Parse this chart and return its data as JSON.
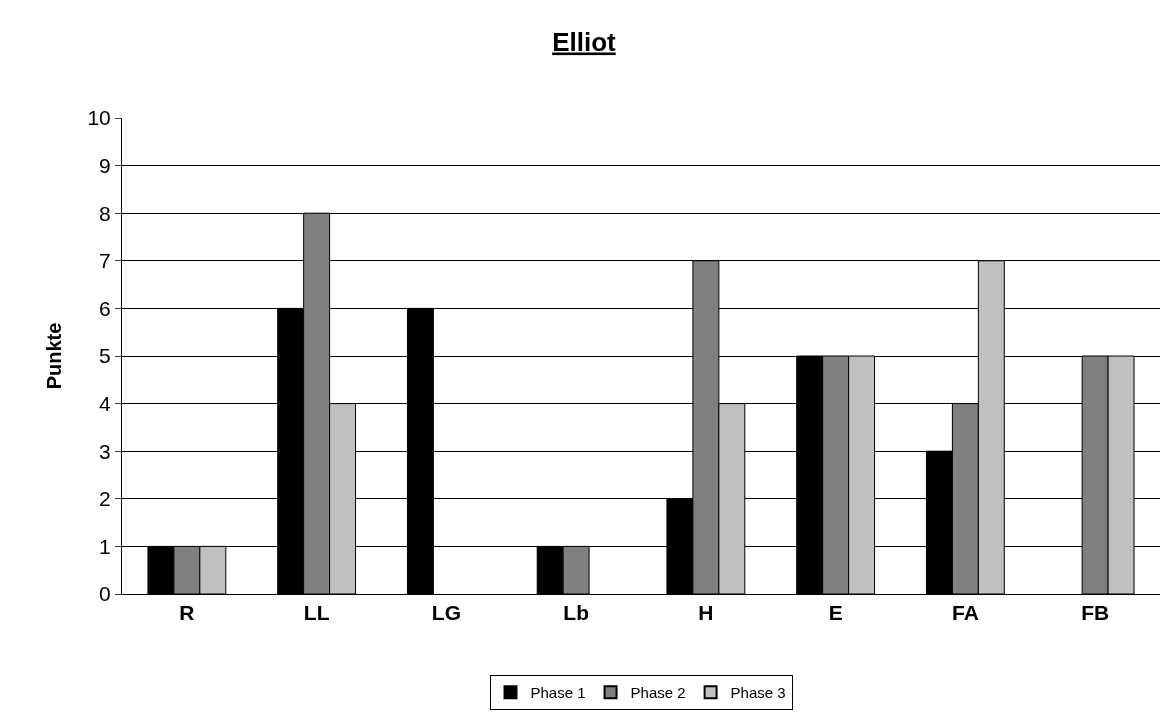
{
  "chart_data": {
    "type": "bar",
    "title": "Elliot",
    "ylabel": "Punkte",
    "categories": [
      "R",
      "LL",
      "LG",
      "Lb",
      "H",
      "E",
      "FA",
      "FB"
    ],
    "series": [
      {
        "name": "Phase 1",
        "color": "#000000",
        "values": [
          1,
          6,
          6,
          1,
          2,
          5,
          3,
          0
        ]
      },
      {
        "name": "Phase 2",
        "color": "#808080",
        "values": [
          1,
          8,
          0,
          1,
          7,
          5,
          4,
          5
        ]
      },
      {
        "name": "Phase 3",
        "color": "#c0c0c0",
        "values": [
          1,
          4,
          0,
          0,
          4,
          5,
          7,
          5
        ]
      }
    ],
    "ylim": [
      0,
      10
    ],
    "yticks": [
      0,
      1,
      2,
      3,
      4,
      5,
      6,
      7,
      8,
      9,
      10
    ],
    "grid": "y",
    "legend": "bottom"
  }
}
